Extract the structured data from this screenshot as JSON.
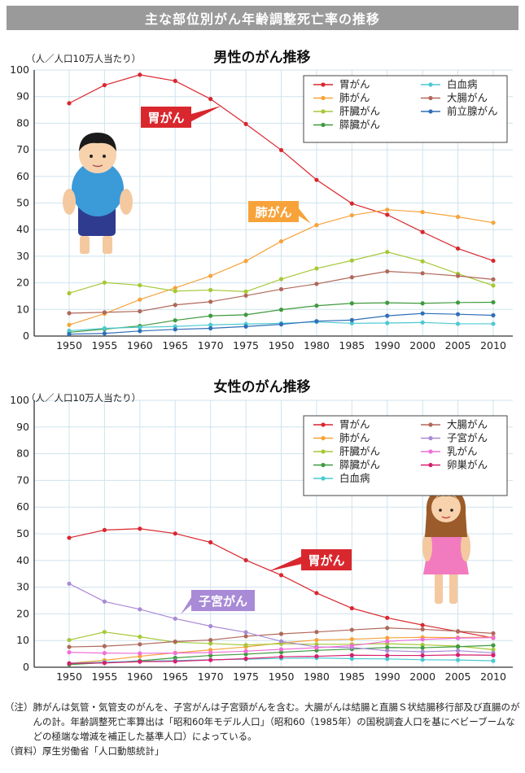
{
  "header": {
    "title": "主な部位別がん年齢調整死亡率の推移"
  },
  "chart_data": [
    {
      "type": "line",
      "title": "男性のがん推移",
      "ylabel": "（人／人口10万人当たり）",
      "xlabel": "",
      "categories": [
        "1950",
        "1955",
        "1960",
        "1965",
        "1970",
        "1975",
        "1950",
        "1980",
        "1985",
        "1990",
        "2000",
        "2005",
        "2010"
      ],
      "ylim": [
        0,
        100
      ],
      "yticks": [
        0,
        10,
        20,
        30,
        40,
        50,
        60,
        70,
        80,
        90,
        100
      ],
      "grid": true,
      "legend_position": "top-right",
      "series": [
        {
          "name": "胃がん",
          "color": "#d9272e",
          "values": [
            87.5,
            94.3,
            98.2,
            95.9,
            89.1,
            79.7,
            69.9,
            58.7,
            49.8,
            45.6,
            39.1,
            32.9,
            28.3
          ]
        },
        {
          "name": "肺がん",
          "color": "#f7a33a",
          "values": [
            4.2,
            8.4,
            13.7,
            18.1,
            22.6,
            28.2,
            35.6,
            41.7,
            45.4,
            47.5,
            46.6,
            44.8,
            42.6
          ]
        },
        {
          "name": "肝臓がん",
          "color": "#a6c837",
          "values": [
            16.1,
            20.1,
            19.1,
            16.9,
            17.3,
            16.7,
            21.4,
            25.4,
            28.4,
            31.6,
            28.1,
            23.4,
            19.0
          ]
        },
        {
          "name": "膵臓がん",
          "color": "#3f9a3e",
          "values": [
            1.4,
            2.6,
            3.8,
            5.9,
            7.6,
            8.0,
            9.9,
            11.4,
            12.3,
            12.5,
            12.3,
            12.6,
            12.7
          ]
        },
        {
          "name": "白血病",
          "color": "#4cc9d0",
          "values": [
            2.0,
            2.9,
            3.3,
            3.6,
            4.2,
            4.5,
            4.8,
            5.3,
            4.8,
            4.9,
            5.1,
            4.6,
            4.6
          ]
        },
        {
          "name": "大腸がん",
          "color": "#b0685a",
          "values": [
            8.6,
            8.9,
            9.3,
            11.7,
            12.9,
            15.2,
            17.6,
            19.6,
            22.1,
            24.3,
            23.6,
            22.6,
            21.3
          ]
        },
        {
          "name": "前立腺がん",
          "color": "#2f6fb7",
          "values": [
            0.7,
            1.0,
            1.9,
            2.5,
            2.9,
            3.6,
            4.4,
            5.6,
            6.0,
            7.6,
            8.5,
            8.2,
            7.8
          ]
        }
      ],
      "legend_entries": [
        "胃がん",
        "白血病",
        "肺がん",
        "大腸がん",
        "肝臓がん",
        "前立腺がん",
        "膵臓がん"
      ],
      "annotations": [
        {
          "text": "胃がん",
          "color": "#d9272e",
          "series": "胃がん"
        },
        {
          "text": "肺がん",
          "color": "#f7a33a",
          "series": "肺がん"
        }
      ]
    },
    {
      "type": "line",
      "title": "女性のがん推移",
      "ylabel": "（人／人口10万人当たり）",
      "xlabel": "",
      "categories": [
        "1950",
        "1955",
        "1960",
        "1965",
        "1970",
        "1975",
        "1950",
        "1980",
        "1985",
        "1990",
        "2000",
        "2005",
        "2010"
      ],
      "ylim": [
        0,
        100
      ],
      "yticks": [
        0,
        10,
        20,
        30,
        40,
        50,
        60,
        70,
        80,
        90,
        100
      ],
      "grid": true,
      "legend_position": "top-right",
      "series": [
        {
          "name": "胃がん",
          "color": "#d9272e",
          "values": [
            48.5,
            51.4,
            51.9,
            50.1,
            46.8,
            40.1,
            34.5,
            27.8,
            22.1,
            18.5,
            15.8,
            13.4,
            11.0
          ]
        },
        {
          "name": "肺がん",
          "color": "#f7a33a",
          "values": [
            1.5,
            2.6,
            4.1,
            5.4,
            6.5,
            7.6,
            9.1,
            10.2,
            10.5,
            11.0,
            11.2,
            11.1,
            11.3
          ]
        },
        {
          "name": "肝臓がん",
          "color": "#a6c837",
          "values": [
            10.2,
            13.2,
            11.4,
            9.4,
            8.9,
            8.3,
            8.8,
            8.6,
            8.6,
            8.8,
            8.4,
            7.9,
            6.6
          ]
        },
        {
          "name": "膵臓がん",
          "color": "#3f9a3e",
          "values": [
            1.0,
            1.7,
            2.4,
            3.5,
            4.4,
            4.9,
            5.6,
            6.3,
            6.8,
            7.4,
            7.3,
            7.7,
            8.2
          ]
        },
        {
          "name": "白血病",
          "color": "#4cc9d0",
          "values": [
            1.5,
            1.9,
            2.2,
            2.5,
            2.8,
            3.0,
            3.3,
            3.5,
            3.2,
            3.1,
            2.8,
            2.7,
            2.4
          ]
        },
        {
          "name": "大腸がん",
          "color": "#b0685a",
          "values": [
            7.6,
            7.9,
            8.6,
            9.6,
            10.2,
            11.6,
            12.5,
            13.2,
            14.0,
            14.7,
            14.2,
            13.5,
            12.7
          ]
        },
        {
          "name": "子宮がん",
          "color": "#a98ad6",
          "values": [
            31.3,
            24.6,
            21.7,
            18.2,
            15.4,
            13.1,
            9.7,
            7.6,
            7.4,
            6.2,
            5.8,
            6.2,
            5.4
          ]
        },
        {
          "name": "乳がん",
          "color": "#f06fd8",
          "values": [
            5.6,
            5.3,
            5.2,
            5.3,
            5.5,
            6.0,
            6.7,
            7.3,
            8.1,
            9.7,
            10.4,
            10.9,
            11.1
          ]
        },
        {
          "name": "卵巣がん",
          "color": "#d61f6e",
          "values": [
            1.4,
            1.6,
            2.1,
            2.2,
            2.7,
            3.2,
            3.9,
            4.1,
            4.5,
            4.4,
            4.4,
            4.6,
            4.5
          ]
        }
      ],
      "legend_entries": [
        "胃がん",
        "大腸がん",
        "肺がん",
        "子宮がん",
        "肝臓がん",
        "乳がん",
        "膵臓がん",
        "卵巣がん",
        "白血病"
      ],
      "annotations": [
        {
          "text": "胃がん",
          "color": "#d9272e",
          "series": "胃がん"
        },
        {
          "text": "子宮がん",
          "color": "#a98ad6",
          "series": "子宮がん"
        }
      ]
    }
  ],
  "notes": {
    "note_tag": "（注）",
    "note_text": "肺がんは気管・気管支のがんを、子宮がんは子宮頸がんを含む。大腸がんは結腸と直腸Ｓ状結腸移行部及び直腸のがんの計。年齢調整死亡率算出は「昭和60年モデル人口」（昭和60（1985年）の国税調査人口を基にベビーブームなどの極端な増減を補正した基準人口）によっている。",
    "source_tag": "（資料）",
    "source_text": "厚生労働省「人口動態統計」"
  }
}
